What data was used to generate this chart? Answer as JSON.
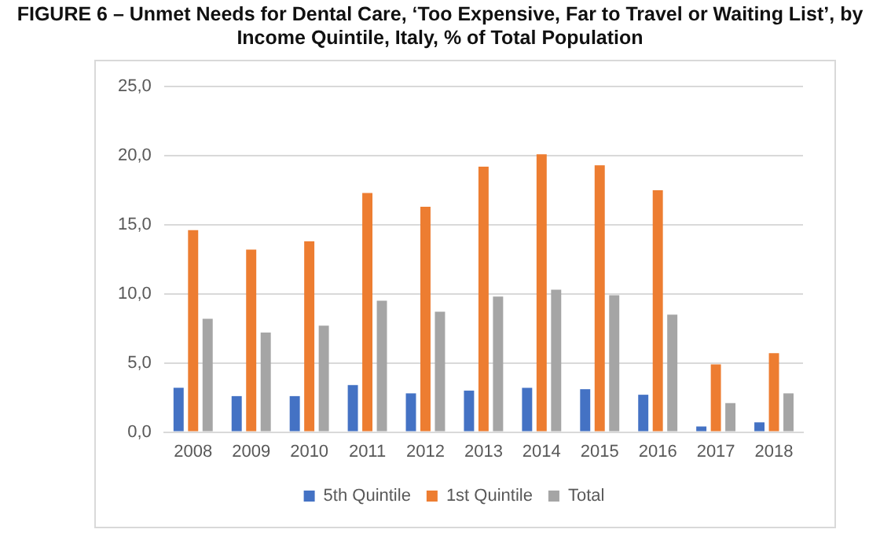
{
  "chart_data": {
    "type": "bar",
    "title": "FIGURE 6 – Unmet Needs for Dental Care, ‘Too Expensive, Far to Travel or Waiting List’, by Income Quintile, Italy, % of Total Population",
    "categories": [
      "2008",
      "2009",
      "2010",
      "2011",
      "2012",
      "2013",
      "2014",
      "2015",
      "2016",
      "2017",
      "2018"
    ],
    "series": [
      {
        "name": "5th Quintile",
        "color": "#4472c4",
        "values": [
          3.2,
          2.6,
          2.6,
          3.4,
          2.8,
          3.0,
          3.2,
          3.1,
          2.7,
          0.4,
          0.7
        ]
      },
      {
        "name": "1st Quintile",
        "color": "#ed7d31",
        "values": [
          14.6,
          13.2,
          13.8,
          17.3,
          16.3,
          19.2,
          20.1,
          19.3,
          17.5,
          4.9,
          5.7
        ]
      },
      {
        "name": "Total",
        "color": "#a5a5a5",
        "values": [
          8.2,
          7.2,
          7.7,
          9.5,
          8.7,
          9.8,
          10.3,
          9.9,
          8.5,
          2.1,
          2.8
        ]
      }
    ],
    "ylim": [
      0,
      25
    ],
    "yticks": [
      {
        "value": 0,
        "label": "0,0"
      },
      {
        "value": 5,
        "label": "5,0"
      },
      {
        "value": 10,
        "label": "10,0"
      },
      {
        "value": 15,
        "label": "15,0"
      },
      {
        "value": 20,
        "label": "20,0"
      },
      {
        "value": 25,
        "label": "25,0"
      }
    ],
    "grid": "y",
    "legend": "bottom"
  }
}
